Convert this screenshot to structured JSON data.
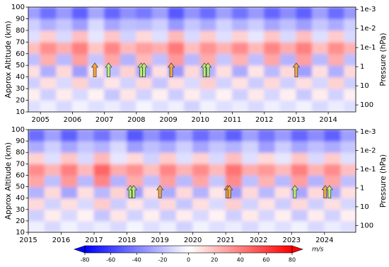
{
  "chart_data": [
    {
      "type": "heatmap",
      "ylabel": "Approx Altitude (km)",
      "y2label": "Pressure (hPa)",
      "xlim": [
        2004.62,
        2014.86
      ],
      "xticks": [
        2005,
        2006,
        2007,
        2008,
        2009,
        2010,
        2011,
        2012,
        2013,
        2014
      ],
      "ylim": [
        10,
        100
      ],
      "yticks": [
        10,
        20,
        30,
        40,
        50,
        60,
        70,
        80,
        90,
        100
      ],
      "y2lim": [
        232,
        0.00076
      ],
      "y2scale": "log",
      "y2ticks": [
        {
          "value": 0.001,
          "label": "1e-3"
        },
        {
          "value": 0.01,
          "label": "1e-2"
        },
        {
          "value": 0.1,
          "label": "1e-1"
        },
        1,
        10,
        100
      ],
      "x_edges": [
        2004.5,
        2005,
        2005.5,
        2006,
        2006.5,
        2007,
        2007.5,
        2008,
        2008.5,
        2009,
        2009.5,
        2010,
        2010.5,
        2011,
        2011.5,
        2012,
        2012.5,
        2013,
        2013.5,
        2014,
        2014.5,
        2015
      ],
      "y_edges": [
        10,
        20,
        30,
        40,
        50,
        60,
        70,
        80,
        90,
        100
      ],
      "z": [
        [
          -10,
          -5,
          -12,
          -4,
          -10,
          -6,
          -12,
          -3,
          -10,
          -5,
          -14,
          -4,
          -10,
          -6,
          -12,
          -5,
          -10,
          -4,
          -12,
          -6,
          -10
        ],
        [
          5,
          -15,
          6,
          -12,
          4,
          -18,
          8,
          -14,
          5,
          -16,
          6,
          -12,
          4,
          -15,
          7,
          -13,
          5,
          -17,
          6,
          -14,
          5
        ],
        [
          -15,
          10,
          -12,
          14,
          -16,
          8,
          -14,
          12,
          -18,
          10,
          -12,
          15,
          -14,
          9,
          -16,
          12,
          -15,
          10,
          -13,
          14,
          -15
        ],
        [
          10,
          -25,
          12,
          -30,
          8,
          -20,
          14,
          -28,
          10,
          -32,
          12,
          -24,
          10,
          -26,
          8,
          -22,
          12,
          -30,
          10,
          -25,
          12
        ],
        [
          -20,
          25,
          -22,
          30,
          -18,
          28,
          -24,
          22,
          -20,
          32,
          -22,
          26,
          -18,
          24,
          -20,
          28,
          -24,
          30,
          -22,
          26,
          -20
        ],
        [
          20,
          35,
          25,
          40,
          18,
          38,
          22,
          30,
          25,
          42,
          20,
          34,
          24,
          36,
          22,
          38,
          26,
          40,
          20,
          35,
          24
        ],
        [
          -10,
          15,
          -12,
          20,
          -8,
          18,
          -14,
          12,
          -10,
          22,
          -12,
          16,
          -10,
          14,
          -8,
          18,
          -12,
          20,
          -10,
          16,
          -12
        ],
        [
          -15,
          -25,
          -18,
          -30,
          -12,
          -28,
          -20,
          -22,
          -15,
          -32,
          -18,
          -26,
          -14,
          -24,
          -16,
          -28,
          -20,
          -30,
          -18,
          -26,
          -15
        ],
        [
          -30,
          -45,
          -32,
          -50,
          -28,
          -48,
          -35,
          -42,
          -30,
          -52,
          -34,
          -46,
          -30,
          -44,
          -32,
          -48,
          -36,
          -50,
          -30,
          -46,
          -32
        ]
      ],
      "arrows": [
        {
          "x": 2006.7,
          "base": 40,
          "tip": 52,
          "color": "#f4a742"
        },
        {
          "x": 2007.13,
          "base": 40,
          "tip": 52,
          "color": "#b8ec7a"
        },
        {
          "x": 2008.15,
          "base": 40,
          "tip": 52,
          "color": "#b8ec7a"
        },
        {
          "x": 2008.24,
          "base": 40,
          "tip": 52,
          "color": "#b8ec7a"
        },
        {
          "x": 2009.09,
          "base": 40,
          "tip": 52,
          "color": "#f4a742"
        },
        {
          "x": 2010.13,
          "base": 40,
          "tip": 52,
          "color": "#b8ec7a"
        },
        {
          "x": 2010.24,
          "base": 40,
          "tip": 52,
          "color": "#b8ec7a"
        },
        {
          "x": 2013.0,
          "base": 40,
          "tip": 52,
          "color": "#f4a742"
        }
      ]
    },
    {
      "type": "heatmap",
      "ylabel": "Approx Altitude (km)",
      "y2label": "Pressure (hPa)",
      "xlim": [
        2015,
        2024.95
      ],
      "xticks": [
        2015,
        2016,
        2017,
        2018,
        2019,
        2020,
        2021,
        2022,
        2023,
        2024
      ],
      "ylim": [
        10,
        100
      ],
      "yticks": [
        10,
        20,
        30,
        40,
        50,
        60,
        70,
        80,
        90,
        100
      ],
      "y2lim": [
        232,
        0.00076
      ],
      "y2scale": "log",
      "y2ticks": [
        {
          "value": 0.001,
          "label": "1e-3"
        },
        {
          "value": 0.01,
          "label": "1e-2"
        },
        {
          "value": 0.1,
          "label": "1e-1"
        },
        1,
        10,
        100
      ],
      "x_edges": [
        2015,
        2015.5,
        2016,
        2016.5,
        2017,
        2017.5,
        2018,
        2018.5,
        2019,
        2019.5,
        2020,
        2020.5,
        2021,
        2021.5,
        2022,
        2022.5,
        2023,
        2023.5,
        2024,
        2024.5,
        2025
      ],
      "y_edges": [
        10,
        20,
        30,
        40,
        50,
        60,
        70,
        80,
        90,
        100
      ],
      "z": [
        [
          -5,
          -12,
          -4,
          -10,
          -6,
          -12,
          -3,
          -10,
          -5,
          -14,
          -4,
          -10,
          -6,
          -12,
          -5,
          -10,
          -4,
          -12,
          -6,
          -10
        ],
        [
          -15,
          6,
          -12,
          4,
          -18,
          8,
          -14,
          5,
          -16,
          6,
          -12,
          4,
          -15,
          7,
          -13,
          5,
          -17,
          6,
          -14,
          5
        ],
        [
          12,
          -14,
          10,
          -12,
          16,
          -16,
          8,
          -14,
          12,
          -18,
          10,
          -12,
          15,
          -14,
          9,
          -16,
          12,
          -15,
          10,
          -13
        ],
        [
          -24,
          12,
          -28,
          10,
          -22,
          14,
          -30,
          10,
          -26,
          12,
          -24,
          8,
          -30,
          12,
          -22,
          10,
          -28,
          12,
          -26,
          10
        ],
        [
          28,
          -20,
          32,
          -22,
          38,
          -24,
          26,
          -20,
          30,
          -22,
          28,
          -18,
          36,
          -20,
          24,
          -22,
          30,
          -24,
          28,
          -20
        ],
        [
          36,
          24,
          40,
          22,
          48,
          26,
          34,
          20,
          38,
          24,
          36,
          22,
          44,
          26,
          32,
          22,
          40,
          24,
          36,
          20
        ],
        [
          14,
          -10,
          18,
          -12,
          22,
          -8,
          12,
          -14,
          16,
          -10,
          14,
          -12,
          20,
          -10,
          12,
          -8,
          18,
          -12,
          16,
          -10
        ],
        [
          -26,
          -15,
          -28,
          -18,
          -24,
          -12,
          -30,
          -20,
          -26,
          -15,
          -28,
          -18,
          -24,
          -14,
          -30,
          -16,
          -28,
          -20,
          -26,
          -18
        ],
        [
          -46,
          -30,
          -50,
          -32,
          -44,
          -28,
          -52,
          -35,
          -48,
          -30,
          -46,
          -34,
          -50,
          -30,
          -44,
          -32,
          -48,
          -36,
          -50,
          -30
        ]
      ],
      "arrows": [
        {
          "x": 2018.1,
          "base": 40,
          "tip": 51,
          "color": "#b8ec7a"
        },
        {
          "x": 2018.2,
          "base": 40,
          "tip": 51,
          "color": "#b8ec7a"
        },
        {
          "x": 2019.0,
          "base": 40,
          "tip": 51,
          "color": "#f4a742"
        },
        {
          "x": 2021.05,
          "base": 40,
          "tip": 51,
          "color": "#f4a742"
        },
        {
          "x": 2021.11,
          "base": 40,
          "tip": 51,
          "color": "#f4a742"
        },
        {
          "x": 2023.1,
          "base": 40,
          "tip": 51,
          "color": "#b8ec7a"
        },
        {
          "x": 2024.02,
          "base": 40,
          "tip": 51,
          "color": "#f4a742"
        },
        {
          "x": 2024.15,
          "base": 40,
          "tip": 51,
          "color": "#b8ec7a"
        }
      ]
    }
  ],
  "colorbar": {
    "label": "m/s",
    "lim": [
      -80,
      80
    ],
    "ticks": [
      -80,
      -60,
      -40,
      -20,
      0,
      20,
      40,
      60,
      80
    ],
    "colors": [
      "#0000ff",
      "#ffffff",
      "#ff0000"
    ]
  }
}
